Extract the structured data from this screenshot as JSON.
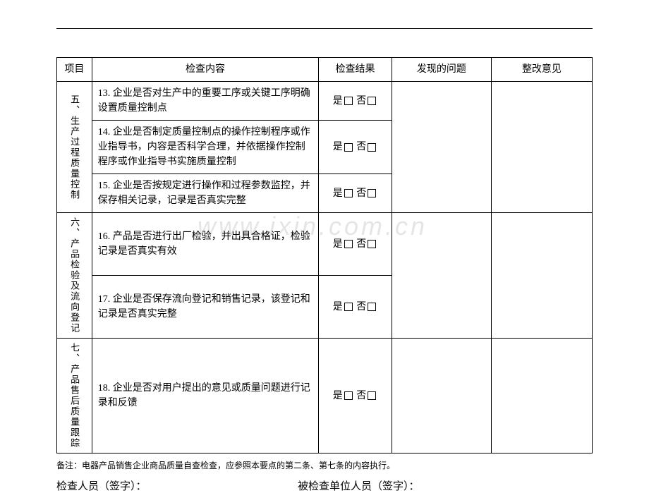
{
  "headers": {
    "item": "项目",
    "content": "检查内容",
    "result": "检查结果",
    "problem": "发现的问题",
    "opinion": "整改意见"
  },
  "sections": {
    "five": "五、生产过程质量控制",
    "six": "六、产品检验及流向登记",
    "seven": "七、产品售后质量跟踪"
  },
  "rows": {
    "r13": "13. 企业是否对生产中的重要工序或关键工序明确设置质量控制点",
    "r14": "14. 企业是否制定质量控制点的操作控制程序或作业指导书，内容是否科学合理，并依据操作控制程序或作业指导书实施质量控制",
    "r15": "15. 企业是否按规定进行操作和过程参数监控，并保存相关记录，记录是否真实完整",
    "r16": "16. 产品是否进行出厂检验，并出具合格证，检验记录是否真实有效",
    "r17": "17. 企业是否保存流向登记和销售记录，该登记和记录是否真实完整",
    "r18": "18. 企业是否对用户提出的意见或质量问题进行记录和反馈"
  },
  "result_labels": {
    "yes": "是",
    "no": "否"
  },
  "note": "备注：电器产品销售企业商品质量自查检查，应参照本要点的第二条、第七条的内容执行。",
  "signatures": {
    "checker": "检查人员（签字）：",
    "checked": "被检查单位人员（签字）："
  },
  "watermark": "www.ixin.com.cn",
  "styling": {
    "border_color": "#000000",
    "background_color": "#ffffff",
    "font_family": "SimSun",
    "base_font_size": 14,
    "note_font_size": 12,
    "signature_font_size": 15
  }
}
